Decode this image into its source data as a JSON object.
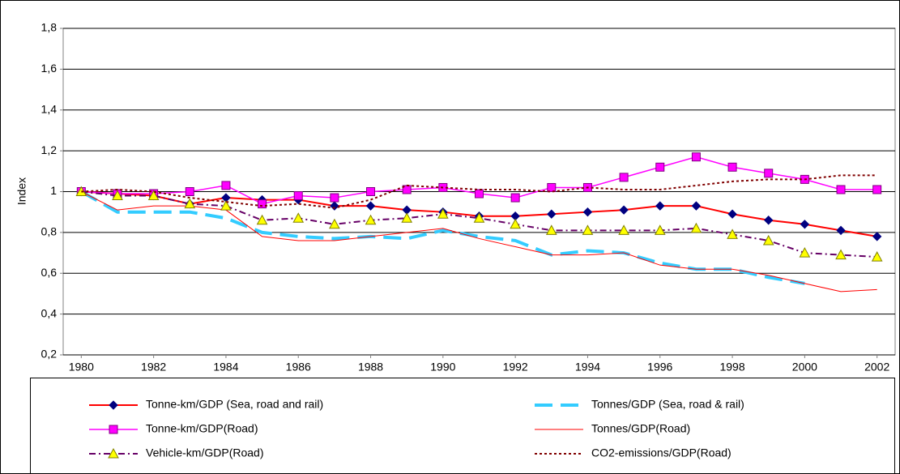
{
  "chart_data": {
    "type": "line",
    "y_label": "Index",
    "x": [
      1980,
      1981,
      1982,
      1983,
      1984,
      1985,
      1986,
      1987,
      1988,
      1989,
      1990,
      1991,
      1992,
      1993,
      1994,
      1995,
      1996,
      1997,
      1998,
      1999,
      2000,
      2001,
      2002
    ],
    "xlim": [
      1979.5,
      2002.5
    ],
    "xticks": [
      1980,
      1982,
      1984,
      1986,
      1988,
      1990,
      1992,
      1994,
      1996,
      1998,
      2000,
      2002
    ],
    "ylim": [
      0.2,
      1.8
    ],
    "yticks": [
      {
        "value": 0.2,
        "label": "0,2"
      },
      {
        "value": 0.4,
        "label": "0,4"
      },
      {
        "value": 0.6,
        "label": "0,6"
      },
      {
        "value": 0.8,
        "label": "0,8"
      },
      1,
      {
        "value": 1.2,
        "label": "1,2"
      },
      {
        "value": 1.4,
        "label": "1,4"
      },
      {
        "value": 1.6,
        "label": "1,6"
      },
      {
        "value": 1.8,
        "label": "1,8"
      }
    ],
    "grid": true,
    "series": [
      {
        "name": "Tonne-km/GDP (Sea, road and rail)",
        "color": "#ff0000",
        "width": 2,
        "dash": "solid",
        "marker": "diamond",
        "marker_fill": "#000080",
        "marker_stroke": "#000080",
        "values": [
          1.0,
          0.99,
          0.98,
          0.94,
          0.97,
          0.96,
          0.96,
          0.93,
          0.93,
          0.91,
          0.9,
          0.88,
          0.88,
          0.89,
          0.9,
          0.91,
          0.93,
          0.93,
          0.89,
          0.86,
          0.84,
          0.81,
          0.78
        ]
      },
      {
        "name": "Tonnes/GDP (Sea, road & rail)",
        "color": "#33ccff",
        "width": 4,
        "dash": "long",
        "marker": "none",
        "marker_fill": "none",
        "marker_stroke": "none",
        "values": [
          1.0,
          0.9,
          0.9,
          0.9,
          0.87,
          0.8,
          0.78,
          0.77,
          0.78,
          0.77,
          0.81,
          0.78,
          0.76,
          0.69,
          0.71,
          0.7,
          0.65,
          0.62,
          0.62,
          0.58,
          0.55,
          null,
          null
        ]
      },
      {
        "name": "Tonne-km/GDP(Road)",
        "color": "#ff00ff",
        "width": 1.5,
        "dash": "solid",
        "marker": "square",
        "marker_fill": "#ff00ff",
        "marker_stroke": "#800080",
        "values": [
          1.0,
          0.99,
          0.99,
          1.0,
          1.03,
          0.94,
          0.98,
          0.97,
          1.0,
          1.01,
          1.02,
          0.99,
          0.97,
          1.02,
          1.02,
          1.07,
          1.12,
          1.17,
          1.12,
          1.09,
          1.06,
          1.01,
          1.01
        ]
      },
      {
        "name": "Tonnes/GDP(Road)",
        "color": "#ff0000",
        "width": 1,
        "dash": "solid",
        "marker": "none",
        "marker_fill": "none",
        "marker_stroke": "none",
        "values": [
          1.0,
          0.91,
          0.93,
          0.93,
          0.91,
          0.78,
          0.76,
          0.76,
          0.78,
          0.8,
          0.82,
          0.77,
          0.73,
          0.69,
          0.69,
          0.7,
          0.64,
          0.62,
          0.62,
          0.59,
          0.55,
          0.51,
          0.52
        ]
      },
      {
        "name": "Vehicle-km/GDP(Road)",
        "color": "#660066",
        "width": 2,
        "dash": "dashdot",
        "marker": "triangle",
        "marker_fill": "#ffff00",
        "marker_stroke": "#808000",
        "values": [
          1.0,
          0.98,
          0.98,
          0.94,
          0.93,
          0.86,
          0.87,
          0.84,
          0.86,
          0.87,
          0.89,
          0.87,
          0.84,
          0.81,
          0.81,
          0.81,
          0.81,
          0.82,
          0.79,
          0.76,
          0.7,
          0.69,
          0.68
        ]
      },
      {
        "name": "CO2-emissions/GDP(Road)",
        "color": "#800000",
        "width": 2,
        "dash": "dot",
        "marker": "none",
        "marker_fill": "none",
        "marker_stroke": "none",
        "values": [
          1.0,
          1.01,
          1.0,
          0.97,
          0.95,
          0.93,
          0.94,
          0.92,
          0.96,
          1.03,
          1.02,
          1.01,
          1.01,
          1.0,
          1.02,
          1.01,
          1.01,
          1.03,
          1.05,
          1.06,
          1.06,
          1.08,
          1.08
        ]
      }
    ]
  }
}
